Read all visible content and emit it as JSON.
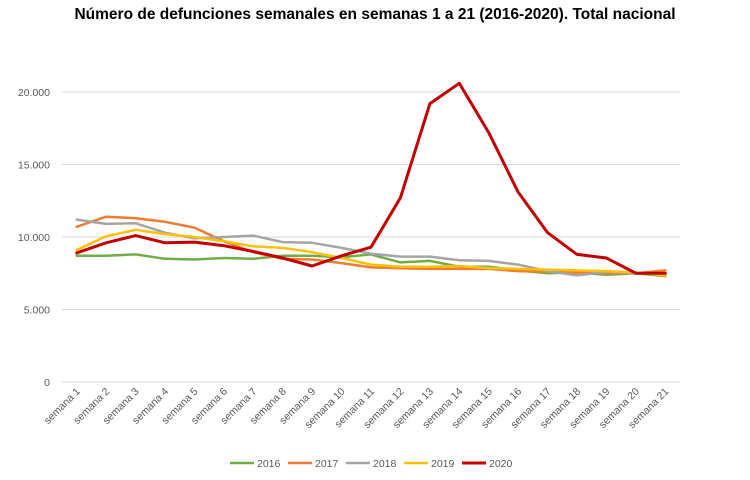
{
  "chart_data": {
    "type": "line",
    "title": "Número de defunciones semanales en semanas 1 a 21 (2016-2020). Total nacional",
    "xlabel": "",
    "ylabel": "",
    "ylim": [
      0,
      20000
    ],
    "yticks": [
      0,
      5000,
      10000,
      15000,
      20000
    ],
    "ytick_labels": [
      "0",
      "5.000",
      "10.000",
      "15.000",
      "20.000"
    ],
    "grid": true,
    "legend_position": "bottom",
    "categories": [
      "semana 1",
      "semana 2",
      "semana 3",
      "semana 4",
      "semana 5",
      "semana 6",
      "semana 7",
      "semana 8",
      "semana 9",
      "semana 10",
      "semana 11",
      "semana 12",
      "semana 13",
      "semana 14",
      "semana 15",
      "semana 16",
      "semana 17",
      "semana 18",
      "semana 19",
      "semana 20",
      "semana 21"
    ],
    "series": [
      {
        "name": "2016",
        "color": "#70AD47",
        "values": [
          8700,
          8700,
          8800,
          8500,
          8450,
          8550,
          8500,
          8700,
          8700,
          8600,
          8800,
          8250,
          8350,
          7950,
          7950,
          7700,
          7500,
          7550,
          7400,
          7500,
          7300
        ]
      },
      {
        "name": "2017",
        "color": "#ED7D31",
        "values": [
          10700,
          11400,
          11300,
          11050,
          10650,
          9700,
          8950,
          8500,
          8450,
          8200,
          7900,
          7850,
          7800,
          7800,
          7800,
          7650,
          7600,
          7550,
          7500,
          7500,
          7700
        ]
      },
      {
        "name": "2018",
        "color": "#A5A5A5",
        "values": [
          11200,
          10900,
          10950,
          10300,
          9900,
          10000,
          10100,
          9650,
          9600,
          9250,
          8850,
          8650,
          8650,
          8400,
          8350,
          8100,
          7650,
          7350,
          7600,
          7500,
          7450
        ]
      },
      {
        "name": "2019",
        "color": "#FFC000",
        "values": [
          9100,
          10050,
          10500,
          10200,
          10000,
          9700,
          9350,
          9250,
          8950,
          8550,
          8100,
          7950,
          7950,
          8000,
          7850,
          7800,
          7750,
          7700,
          7650,
          7550,
          7350
        ]
      },
      {
        "name": "2020",
        "color": "#C00000",
        "values": [
          8900,
          9600,
          10100,
          9600,
          9650,
          9400,
          9000,
          8550,
          8000,
          8700,
          9300,
          12700,
          19200,
          20600,
          17200,
          13100,
          10300,
          8800,
          8550,
          7500,
          7500
        ]
      }
    ]
  }
}
